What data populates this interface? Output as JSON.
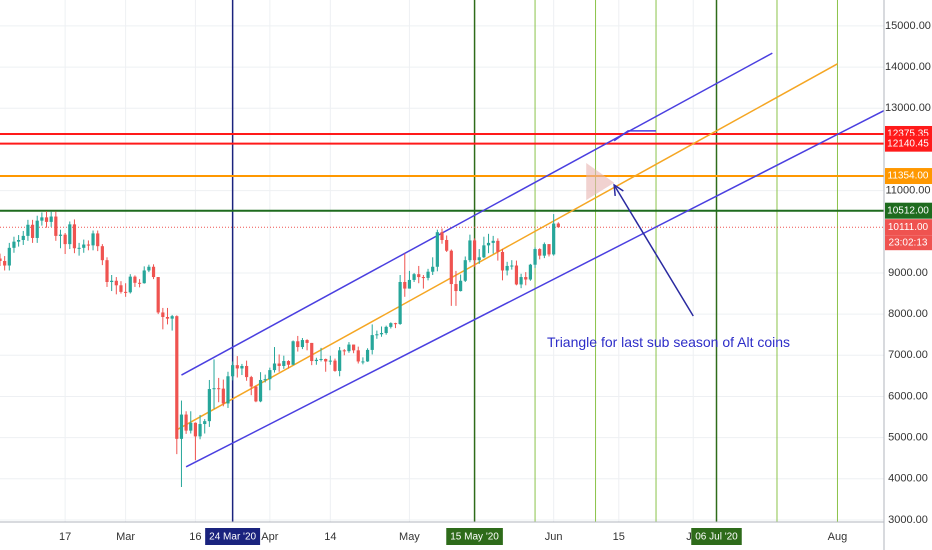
{
  "chart_data": {
    "type": "candlestick",
    "xlim": [
      "2020-02-03",
      "2020-08-11"
    ],
    "ylim": [
      2950,
      15630
    ],
    "grid": true,
    "up_color": "#26a69a",
    "down_color": "#ef5350",
    "xticks": [
      {
        "value": "2020-02-17",
        "label": "17"
      },
      {
        "value": "2020-03-01",
        "label": "Mar"
      },
      {
        "value": "2020-03-16",
        "label": "16"
      },
      {
        "value": "2020-04-01",
        "label": "Apr"
      },
      {
        "value": "2020-04-14",
        "label": "14"
      },
      {
        "value": "2020-05-01",
        "label": "May"
      },
      {
        "value": "2020-06-01",
        "label": "Jun"
      },
      {
        "value": "2020-06-15",
        "label": "15"
      },
      {
        "value": "2020-07-01",
        "label": "Jul"
      },
      {
        "value": "2020-08-01",
        "label": "Aug"
      }
    ],
    "yticks": [
      {
        "value": 3000,
        "label": "3000.00"
      },
      {
        "value": 4000,
        "label": "4000.00"
      },
      {
        "value": 5000,
        "label": "5000.00"
      },
      {
        "value": 6000,
        "label": "6000.00"
      },
      {
        "value": 7000,
        "label": "7000.00"
      },
      {
        "value": 8000,
        "label": "8000.00"
      },
      {
        "value": 9000,
        "label": "9000.00"
      },
      {
        "value": 11000,
        "label": "11000.00"
      },
      {
        "value": 13000,
        "label": "13000.00"
      },
      {
        "value": 14000,
        "label": "14000.00"
      },
      {
        "value": 15000,
        "label": "15000.00"
      }
    ],
    "x": [
      "2020-02-03",
      "2020-02-04",
      "2020-02-05",
      "2020-02-06",
      "2020-02-07",
      "2020-02-08",
      "2020-02-09",
      "2020-02-10",
      "2020-02-11",
      "2020-02-12",
      "2020-02-13",
      "2020-02-14",
      "2020-02-15",
      "2020-02-16",
      "2020-02-17",
      "2020-02-18",
      "2020-02-19",
      "2020-02-20",
      "2020-02-21",
      "2020-02-22",
      "2020-02-23",
      "2020-02-24",
      "2020-02-25",
      "2020-02-26",
      "2020-02-27",
      "2020-02-28",
      "2020-02-29",
      "2020-03-01",
      "2020-03-02",
      "2020-03-03",
      "2020-03-04",
      "2020-03-05",
      "2020-03-06",
      "2020-03-07",
      "2020-03-08",
      "2020-03-09",
      "2020-03-10",
      "2020-03-11",
      "2020-03-12",
      "2020-03-13",
      "2020-03-14",
      "2020-03-15",
      "2020-03-16",
      "2020-03-17",
      "2020-03-18",
      "2020-03-19",
      "2020-03-20",
      "2020-03-21",
      "2020-03-22",
      "2020-03-23",
      "2020-03-24",
      "2020-03-25",
      "2020-03-26",
      "2020-03-27",
      "2020-03-28",
      "2020-03-29",
      "2020-03-30",
      "2020-03-31",
      "2020-04-01",
      "2020-04-02",
      "2020-04-03",
      "2020-04-04",
      "2020-04-05",
      "2020-04-06",
      "2020-04-07",
      "2020-04-08",
      "2020-04-09",
      "2020-04-10",
      "2020-04-11",
      "2020-04-12",
      "2020-04-13",
      "2020-04-14",
      "2020-04-15",
      "2020-04-16",
      "2020-04-17",
      "2020-04-18",
      "2020-04-19",
      "2020-04-20",
      "2020-04-21",
      "2020-04-22",
      "2020-04-23",
      "2020-04-24",
      "2020-04-25",
      "2020-04-26",
      "2020-04-27",
      "2020-04-28",
      "2020-04-29",
      "2020-04-30",
      "2020-05-01",
      "2020-05-02",
      "2020-05-03",
      "2020-05-04",
      "2020-05-05",
      "2020-05-06",
      "2020-05-07",
      "2020-05-08",
      "2020-05-09",
      "2020-05-10",
      "2020-05-11",
      "2020-05-12",
      "2020-05-13",
      "2020-05-14",
      "2020-05-15",
      "2020-05-16",
      "2020-05-17",
      "2020-05-18",
      "2020-05-19",
      "2020-05-20",
      "2020-05-21",
      "2020-05-22",
      "2020-05-23",
      "2020-05-24",
      "2020-05-25",
      "2020-05-26",
      "2020-05-27",
      "2020-05-28",
      "2020-05-29",
      "2020-05-30",
      "2020-05-31",
      "2020-06-01",
      "2020-06-02"
    ],
    "open": [
      9350,
      9290,
      9180,
      9610,
      9760,
      9800,
      9900,
      10170,
      9850,
      10270,
      10350,
      10240,
      10370,
      9900,
      9930,
      9700,
      10180,
      9600,
      9610,
      9690,
      9670,
      9960,
      9650,
      9310,
      8780,
      8810,
      8700,
      8540,
      8530,
      8910,
      8760,
      8750,
      9060,
      9150,
      8900,
      8040,
      7930,
      7890,
      7950,
      4970,
      5560,
      5170,
      5360,
      5030,
      5330,
      5400,
      6180,
      6200,
      6190,
      5830,
      6490,
      6760,
      6680,
      6740,
      6470,
      6240,
      5880,
      6400,
      6420,
      6640,
      6800,
      6740,
      6860,
      6770,
      7340,
      7200,
      7370,
      7300,
      6860,
      6890,
      6910,
      6850,
      6870,
      6620,
      7120,
      7100,
      7260,
      7120,
      6850,
      6850,
      7130,
      7490,
      7510,
      7540,
      7690,
      7780,
      7760,
      8780,
      8620,
      8830,
      8970,
      8900,
      8880,
      9030,
      9150,
      9990,
      9800,
      9540,
      8730,
      8560,
      8810,
      9310,
      9790,
      9310,
      9380,
      9670,
      9730,
      9780,
      9510,
      9060,
      9170,
      9180,
      8720,
      8900,
      8840,
      9200,
      9580,
      9420,
      9700,
      9450,
      10200
    ],
    "high": [
      9470,
      9410,
      9730,
      9880,
      9920,
      10020,
      10290,
      10290,
      10390,
      10470,
      10500,
      10490,
      10490,
      10050,
      9970,
      10250,
      10300,
      9730,
      9810,
      9790,
      10030,
      10030,
      9700,
      9380,
      8950,
      8900,
      8800,
      8750,
      8970,
      8940,
      8850,
      9160,
      9200,
      9210,
      8900,
      8150,
      8150,
      7980,
      7970,
      5900,
      5640,
      5640,
      5370,
      5550,
      5450,
      6400,
      6900,
      6450,
      6410,
      6600,
      6850,
      6980,
      6790,
      6870,
      6500,
      6260,
      6590,
      6530,
      6700,
      7200,
      7020,
      6990,
      6880,
      7360,
      7470,
      7420,
      7390,
      7300,
      6940,
      7180,
      6920,
      6990,
      6920,
      7200,
      7150,
      7320,
      7260,
      7210,
      6950,
      7170,
      7750,
      7600,
      7700,
      7720,
      7800,
      7790,
      8950,
      9470,
      9050,
      9000,
      9170,
      8950,
      9100,
      9380,
      10050,
      10080,
      9910,
      9570,
      9050,
      8960,
      9400,
      9930,
      9840,
      9580,
      9880,
      9950,
      9900,
      9840,
      9580,
      9270,
      9310,
      9300,
      8980,
      9020,
      9220,
      9620,
      9600,
      9740,
      9700,
      10430,
      10230
    ],
    "low": [
      9170,
      9060,
      9060,
      9490,
      9640,
      9680,
      9780,
      9730,
      9730,
      10150,
      10100,
      10120,
      9780,
      9600,
      9460,
      9580,
      9480,
      9420,
      9490,
      9550,
      9550,
      9530,
      9190,
      8660,
      8560,
      8480,
      8500,
      8420,
      8500,
      8660,
      8650,
      8740,
      9020,
      8850,
      8000,
      7630,
      7750,
      7600,
      4600,
      3800,
      5090,
      5100,
      4450,
      4960,
      5100,
      5260,
      5700,
      5860,
      5760,
      5720,
      6390,
      6460,
      6520,
      6380,
      6030,
      5860,
      5860,
      6340,
      6150,
      6580,
      6600,
      6670,
      6680,
      6760,
      7090,
      7150,
      7120,
      6760,
      6770,
      6850,
      6600,
      6770,
      6600,
      6490,
      7000,
      7060,
      7050,
      6800,
      6780,
      6840,
      7020,
      7400,
      7450,
      7500,
      7650,
      7660,
      7740,
      8420,
      8620,
      8780,
      8750,
      8620,
      8820,
      8950,
      9040,
      9710,
      9510,
      8200,
      8200,
      8550,
      8780,
      9260,
      9140,
      9220,
      9360,
      9480,
      9470,
      9300,
      8820,
      8940,
      9080,
      8700,
      8630,
      8700,
      8810,
      9120,
      9330,
      9360,
      9400,
      9420,
      10100
    ],
    "close": [
      9290,
      9180,
      9610,
      9760,
      9800,
      9900,
      10170,
      9850,
      10270,
      10350,
      10240,
      10370,
      9900,
      9930,
      9700,
      10180,
      9600,
      9610,
      9690,
      9670,
      9960,
      9650,
      9310,
      8780,
      8810,
      8700,
      8540,
      8530,
      8910,
      8760,
      8750,
      9060,
      9150,
      8900,
      8040,
      7930,
      7890,
      7950,
      4970,
      5560,
      5170,
      5360,
      5030,
      5330,
      5400,
      6180,
      6200,
      6190,
      5830,
      6490,
      6760,
      6680,
      6740,
      6470,
      6240,
      5880,
      6400,
      6420,
      6640,
      6800,
      6740,
      6860,
      6770,
      7340,
      7200,
      7370,
      7300,
      6860,
      6890,
      6910,
      6850,
      6870,
      6620,
      7120,
      7100,
      7260,
      7120,
      6850,
      6850,
      7130,
      7490,
      7510,
      7540,
      7690,
      7780,
      7760,
      8780,
      8620,
      8830,
      8970,
      8900,
      8880,
      9030,
      9150,
      9990,
      9800,
      9540,
      8730,
      8560,
      8810,
      9310,
      9790,
      9310,
      9380,
      9670,
      9730,
      9780,
      9510,
      9060,
      9170,
      9180,
      8720,
      8900,
      8840,
      9200,
      9580,
      9420,
      9700,
      9450,
      10200,
      10111
    ],
    "price_lines": [
      {
        "value": 12375.35,
        "label": "12375.35",
        "color": "#ff1a1a"
      },
      {
        "value": 12140.45,
        "label": "12140.45",
        "color": "#ff1a1a"
      },
      {
        "value": 11354.0,
        "label": "11354.00",
        "color": "#ff9800"
      },
      {
        "value": 10512.0,
        "label": "10512.00",
        "color": "#1e6b1e"
      },
      {
        "value": 10111.0,
        "label": "10111.00",
        "color": "#ef5350",
        "dotted": true,
        "countdown": "23:02:13"
      }
    ],
    "markers": [
      {
        "x": "2020-03-24",
        "label": "24 Mar '20",
        "color": "#1a237e"
      },
      {
        "x": "2020-05-15",
        "label": "15 May '20",
        "color": "#2e6b1a"
      },
      {
        "x": "2020-07-06",
        "label": "06 Jul '20",
        "color": "#2e6b1a"
      }
    ],
    "cycle_lines": {
      "color": "#8bc34a",
      "x": [
        "2020-05-28",
        "2020-06-10",
        "2020-06-23",
        "2020-07-19",
        "2020-08-01"
      ]
    },
    "drawings": [
      {
        "kind": "line",
        "color": "#4a3fe0",
        "points": [
          [
            "2020-03-13",
            6520
          ],
          [
            "2020-07-18",
            14340
          ]
        ]
      },
      {
        "kind": "line",
        "color": "#4a3fe0",
        "points": [
          [
            "2020-03-14",
            4290
          ],
          [
            "2020-08-21",
            13520
          ]
        ]
      },
      {
        "kind": "line",
        "color": "#f5a623",
        "points": [
          [
            "2020-03-12",
            5190
          ],
          [
            "2020-08-01",
            14080
          ]
        ]
      },
      {
        "kind": "line",
        "color": "#4a3fe0",
        "points": [
          [
            "2020-06-14",
            12210
          ],
          [
            "2020-06-17",
            12450
          ],
          [
            "2020-06-23",
            12450
          ]
        ]
      },
      {
        "kind": "polygon",
        "color": "#e8b4b0",
        "points": [
          [
            "2020-06-08",
            11670
          ],
          [
            "2020-06-14",
            11190
          ],
          [
            "2020-06-08",
            10770
          ]
        ]
      },
      {
        "kind": "arrow",
        "color": "#2a2aa0",
        "points": [
          [
            "2020-07-01",
            7955
          ],
          [
            "2020-06-14",
            11137
          ]
        ]
      }
    ],
    "annotation": "Triangle for last sub season of Alt coins"
  }
}
